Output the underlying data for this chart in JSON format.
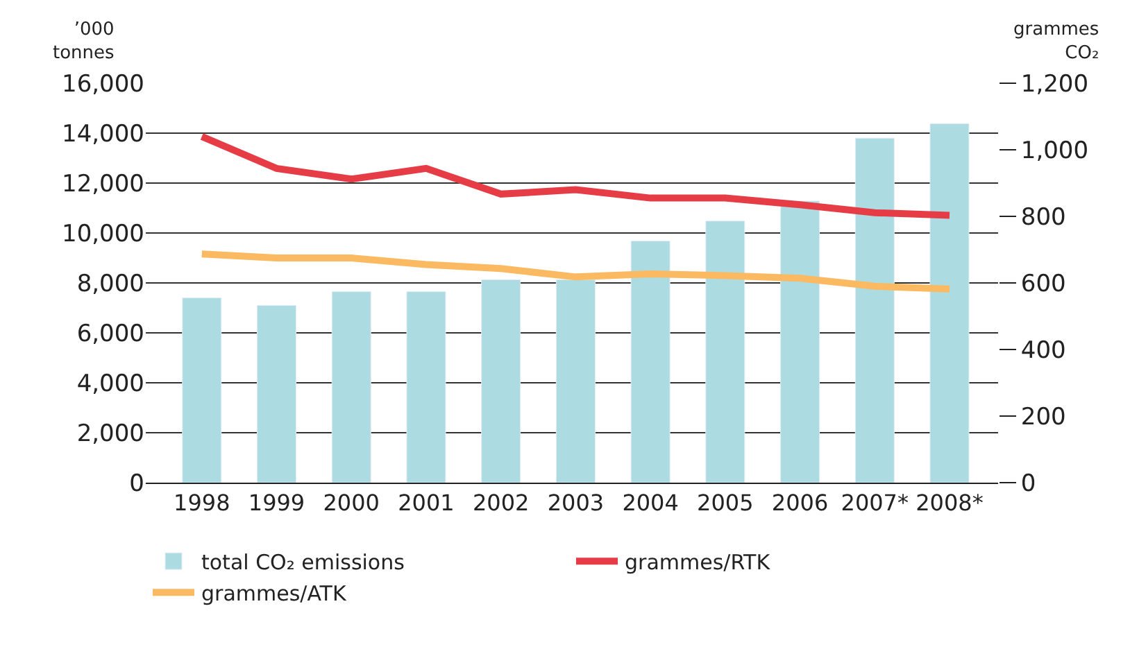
{
  "chart_data": {
    "type": "bar",
    "ylabel": "’000\ntonnes",
    "y2label": "grammes\nCO₂",
    "categories": [
      "1998",
      "1999",
      "2000",
      "2001",
      "2002",
      "2003",
      "2004",
      "2005",
      "2006",
      "2007*",
      "2008*"
    ],
    "series": [
      {
        "name": "total CO₂ emissions",
        "color": "#acdce2",
        "values": [
          7400,
          7100,
          7650,
          7650,
          8130,
          8130,
          9680,
          10480,
          11280,
          13800,
          14380
        ]
      },
      {
        "name": "grammes/RTK",
        "type": "line",
        "axis": "y2",
        "color": "#e63c46",
        "values": [
          1040,
          944,
          912,
          944,
          867,
          880,
          855,
          855,
          835,
          811,
          803
        ]
      },
      {
        "name": "grammes/ATK",
        "type": "line",
        "axis": "y2",
        "color": "#fbb962",
        "values": [
          687,
          675,
          675,
          655,
          643,
          618,
          627,
          622,
          614,
          590,
          582
        ]
      }
    ],
    "ylim": [
      0,
      16000
    ],
    "yticks": [
      {
        "value": 0,
        "label": "0"
      },
      {
        "value": 2000,
        "label": "2,000"
      },
      {
        "value": 4000,
        "label": "4,000"
      },
      {
        "value": 6000,
        "label": "6,000"
      },
      {
        "value": 8000,
        "label": "8,000"
      },
      {
        "value": 10000,
        "label": "10,000"
      },
      {
        "value": 12000,
        "label": "12,000"
      },
      {
        "value": 14000,
        "label": "14,000"
      },
      {
        "value": 16000,
        "label": "16,000"
      }
    ],
    "y2lim": [
      0,
      1200
    ],
    "y2ticks": [
      0,
      200,
      400,
      600,
      800,
      {
        "value": 1000,
        "label": "1,000"
      },
      {
        "value": 1200,
        "label": "1,200"
      }
    ],
    "grid": "y",
    "legend": "bottom",
    "marker": "none",
    "line_style": "solid"
  }
}
